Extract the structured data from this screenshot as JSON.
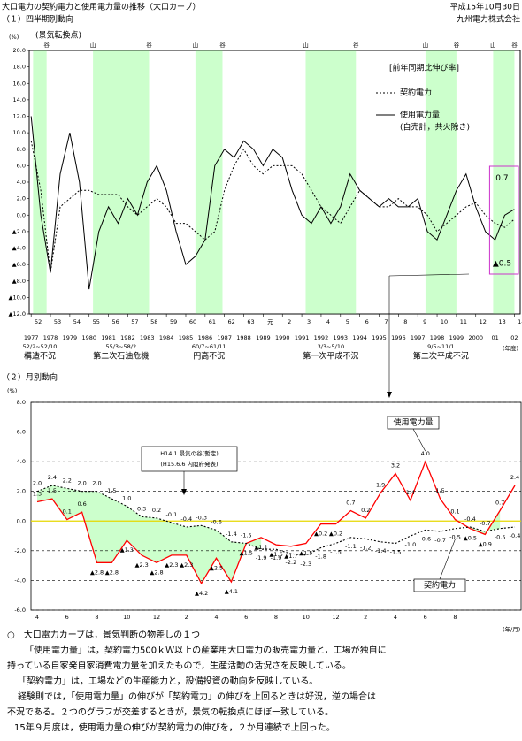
{
  "header": {
    "title": "大口電力の契約電力と使用電力量の推移（大口カーブ）",
    "date": "平成15年10月30日",
    "company": "九州電力株式会社"
  },
  "chart_data": [
    {
      "type": "line",
      "heading": "（１）四半期別動向",
      "y_unit": "(%)",
      "turning_note": "(景気転換点)",
      "x_unit": "(年度)",
      "legend_title": "[前年同期比伸び率]",
      "band_color": "#ccffcc",
      "x": [
        1977,
        1977.5,
        1978,
        1978.5,
        1979,
        1979.5,
        1980,
        1980.5,
        1981,
        1981.5,
        1982,
        1982.5,
        1983,
        1983.5,
        1984,
        1984.5,
        1985,
        1985.5,
        1986,
        1986.5,
        1987,
        1987.5,
        1988,
        1988.5,
        1989,
        1989.5,
        1990,
        1990.5,
        1991,
        1991.5,
        1992,
        1992.5,
        1993,
        1993.5,
        1994,
        1994.5,
        1995,
        1995.5,
        1996,
        1996.5,
        1997,
        1997.5,
        1998,
        1998.5,
        1999,
        1999.5,
        2000,
        2000.5,
        2001,
        2001.5,
        2002
      ],
      "series": [
        {
          "name": "契約電力",
          "color": "#000000",
          "dash": "2,2",
          "end_label": "▲0.5",
          "values": [
            9,
            3,
            -7,
            1,
            2,
            3,
            3,
            2.5,
            2.5,
            2.5,
            1,
            0,
            1,
            2,
            1,
            -1,
            -1,
            -2,
            -3,
            -2,
            3,
            6,
            8,
            6,
            5,
            6,
            6,
            6,
            5,
            3,
            1,
            0,
            -1,
            1,
            3,
            2,
            1,
            1,
            2,
            1,
            1,
            0,
            -2,
            -1,
            0,
            1,
            1.5,
            0,
            -1,
            -1.5,
            -0.5
          ]
        },
        {
          "name": "使用電力量",
          "note": "(自売計，共火除き)",
          "color": "#000000",
          "dash": "none",
          "end_label": "0.7",
          "values": [
            12,
            0,
            -7,
            5,
            10,
            4,
            -9,
            -2,
            1,
            -1,
            2,
            0,
            4,
            6,
            3,
            -2,
            -6,
            -5,
            -3,
            6,
            8,
            7,
            9,
            8,
            6,
            8,
            7,
            3,
            0,
            -1,
            1,
            -1,
            1,
            5,
            3,
            2,
            1,
            2,
            1,
            1,
            2,
            -2,
            -3,
            0,
            3,
            5,
            1,
            -2,
            -3,
            0,
            0.7
          ]
        }
      ],
      "xlim": [
        1976.9,
        2002.3
      ],
      "xticks": [
        1977,
        1978,
        1979,
        1980,
        1981,
        1982,
        1983,
        1984,
        1985,
        1986,
        1987,
        1988,
        1989,
        1990,
        1991,
        1992,
        1993,
        1994,
        1995,
        1996,
        1997,
        1998,
        1999,
        2000,
        {
          "value": 2001,
          "label": "01"
        },
        {
          "value": 2002,
          "label": "02"
        }
      ],
      "fiscal_labels": [
        "52",
        "53",
        "54",
        "55",
        "56",
        "57",
        "58",
        "59",
        "60",
        "61",
        "62",
        "63",
        "元",
        "2",
        "3",
        "4",
        "5",
        "6",
        "7",
        "8",
        "9",
        "10",
        "11",
        "12",
        "13",
        "14"
      ],
      "ylim": [
        -12,
        20
      ],
      "yticks": [
        {
          "value": 20,
          "label": "20.0"
        },
        {
          "value": 18,
          "label": "18.0"
        },
        {
          "value": 16,
          "label": "16.0"
        },
        {
          "value": 14,
          "label": "14.0"
        },
        {
          "value": 12,
          "label": "12.0"
        },
        {
          "value": 10,
          "label": "10.0"
        },
        {
          "value": 8,
          "label": "8.0"
        },
        {
          "value": 6,
          "label": "6.0"
        },
        {
          "value": 4,
          "label": "4.0"
        },
        {
          "value": 2,
          "label": "2.0"
        },
        {
          "value": 0,
          "label": "0.0"
        },
        {
          "value": -2,
          "label": "▲2.0"
        },
        {
          "value": -4,
          "label": "▲4.0"
        },
        {
          "value": -6,
          "label": "▲6.0"
        },
        {
          "value": -8,
          "label": "▲8.0"
        },
        {
          "value": -10,
          "label": "▲10.0"
        },
        {
          "value": -12,
          "label": "▲12.0"
        }
      ],
      "recessions": [
        {
          "start": 1977.1,
          "end": 1977.8,
          "dates": "52/2~52/10",
          "label": "構造不況"
        },
        {
          "start": 1980.2,
          "end": 1983.1,
          "dates": "55/3~58/2",
          "label": "第二次石油危機"
        },
        {
          "start": 1985.5,
          "end": 1986.9,
          "dates": "60/7~61/11",
          "label": "円高不況"
        },
        {
          "start": 1991.2,
          "end": 1993.8,
          "dates": "3/3~5/10",
          "label": "第一次平成不況"
        },
        {
          "start": 1997.4,
          "end": 1999.0,
          "dates": "9/5~11/1",
          "label": "第二次平成不況"
        },
        {
          "start": 2000.9,
          "end": 2002.0
        }
      ],
      "turning_points": [
        {
          "x": 1977.8,
          "label": "谷"
        },
        {
          "x": 1980.2,
          "label": "山"
        },
        {
          "x": 1983.1,
          "label": "谷"
        },
        {
          "x": 1985.5,
          "label": "山"
        },
        {
          "x": 1986.9,
          "label": "谷"
        },
        {
          "x": 1991.2,
          "label": "山"
        },
        {
          "x": 1993.8,
          "label": "谷"
        },
        {
          "x": 1997.4,
          "label": "山"
        },
        {
          "x": 1999.0,
          "label": "谷"
        },
        {
          "x": 2000.9,
          "label": "山"
        },
        {
          "x": 2002.0,
          "label": "谷"
        }
      ]
    },
    {
      "type": "line",
      "heading": "（２）月別動向",
      "y_unit": "(%)",
      "x_unit": "(年/月)",
      "fill_color": "#ccffcc",
      "grid": true,
      "zero_color": "#e6d800",
      "annotation": {
        "title": "H14.1 景気の谷(暫定)",
        "note": "(H15.6.6 内閣府発表)"
      },
      "categories": [
        "4",
        null,
        "6",
        null,
        "8",
        null,
        "10",
        null,
        "12",
        null,
        "2",
        null,
        "4",
        null,
        "6",
        null,
        "8",
        null,
        "10",
        null,
        "12",
        null,
        "2",
        null,
        "4",
        null,
        "6",
        null,
        "8",
        null,
        null,
        null,
        null
      ],
      "series": [
        {
          "name": "使用電力量",
          "color": "#ff0000",
          "dash": "none",
          "values": [
            1.3,
            1.5,
            0.1,
            0.6,
            -2.8,
            -2.8,
            -1.3,
            -2.3,
            -2.8,
            -2.3,
            -2.3,
            -4.2,
            -2.5,
            -4.1,
            -1.5,
            -1.1,
            -1.6,
            -1.7,
            -1.5,
            -0.2,
            -0.2,
            0.7,
            0.2,
            1.9,
            3.2,
            1.4,
            4.0,
            1.5,
            0.1,
            -0.5,
            -0.9,
            0.7,
            2.4
          ],
          "value_labels": [
            "1.3",
            "1.5",
            "0.1",
            "0.6",
            "▲2.8",
            "▲2.8",
            "▲1.3",
            "▲2.3",
            "▲2.8",
            "▲2.3",
            "▲2.3",
            "▲4.2",
            "▲2.5",
            "▲4.1",
            "▲1.5",
            "▲1.1",
            "▲1.6",
            "▲1.7",
            "▲1.5",
            "▲0.2",
            "▲0.2",
            "0.7",
            "0.2",
            "1.9",
            "3.2",
            "1.4",
            "4.0",
            "1.5",
            "0.1",
            "▲0.5",
            "▲0.9",
            "0.7",
            "2.4"
          ]
        },
        {
          "name": "契約電力",
          "color": "#000000",
          "dash": "2,2",
          "values": [
            2.0,
            2.4,
            2.2,
            2.0,
            2.0,
            1.5,
            1.0,
            0.3,
            0.2,
            -0.1,
            -0.4,
            -0.3,
            -0.6,
            -1.4,
            -1.5,
            -1.9,
            -1.9,
            -2.2,
            -2.3,
            -1.8,
            -1.5,
            -1.1,
            -1.2,
            -1.4,
            -1.5,
            -1.0,
            -0.6,
            -0.7,
            -0.5,
            -0.4,
            -0.7,
            -0.5,
            -0.4
          ],
          "value_labels": [
            "2.0",
            "2.4",
            "2.2",
            "2.0",
            "2.0",
            "1.5",
            "1.0",
            "0.3",
            "0.2",
            "-0.1",
            "-0.4",
            "-0.3",
            "-0.6",
            "-1.4",
            "-1.5",
            "-1.9",
            "-1.9",
            "-2.2",
            "-2.3",
            "-1.8",
            "-1.5",
            "-1.1",
            "-1.2",
            "-1.4",
            "-1.5",
            "-1.0",
            "-0.6",
            "-0.7",
            "-0.5",
            "-0.4",
            "-0.7",
            "-0.5",
            "-0.4"
          ]
        }
      ],
      "ylim": [
        -6,
        8
      ],
      "yticks": [
        {
          "value": 8,
          "label": "8.0"
        },
        {
          "value": 6,
          "label": "6.0"
        },
        {
          "value": 4,
          "label": "4.0"
        },
        {
          "value": 2,
          "label": "2.0"
        },
        {
          "value": 0,
          "label": "0.0"
        },
        {
          "value": -2,
          "label": "-2.0"
        },
        {
          "value": -4,
          "label": "-4.0"
        },
        {
          "value": -6,
          "label": "-6.0"
        }
      ]
    }
  ],
  "notes": [
    "○　大口電力カーブは，景気判断の物差しの１つ",
    "「使用電力量」は，契約電力500ｋＷ以上の産業用大口電力の販売電力量と，工場が独自に",
    "持っている自家発自家消費電力量を加えたもので，生産活動の活況さを反映している。",
    "「契約電力」は，工場などの生産能力と，設備投資の動向を反映している。",
    "経験則では，「使用電力量」の伸びが「契約電力」の伸びを上回るときは好況，逆の場合は",
    "不況である。２つのグラフが交差するときが，景気の転換点にほぼ一致している。",
    "15年９月度は，使用電力量の伸びが契約電力の伸びを，２か月連続で上回った。"
  ]
}
